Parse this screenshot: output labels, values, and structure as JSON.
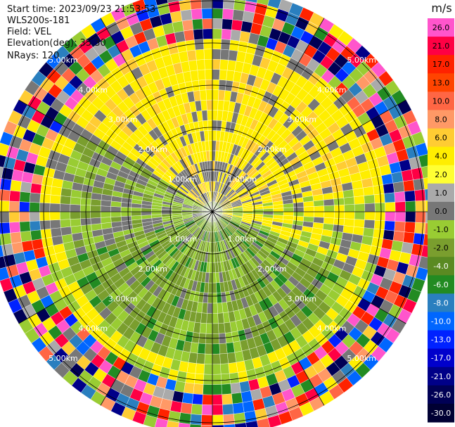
{
  "header": {
    "start_time": "Start time: 2023/09/23 21:53:53",
    "instrument": "WLS200s-181",
    "field": "Field: VEL",
    "elevation": "Elevation(deg): 35.30",
    "nrays": "NRays: 120"
  },
  "chart_data": {
    "type": "heatmap",
    "projection": "polar PPI",
    "field": "VEL",
    "units": "m/s",
    "n_rays": 120,
    "range_rings_km": [
      1.0,
      2.0,
      3.0,
      4.0,
      5.0
    ],
    "range_ring_labels": [
      "1.00km",
      "2.00km",
      "3.00km",
      "4.00km",
      "5.00km"
    ],
    "azimuth_spokes_deg": [
      0,
      30,
      60,
      90,
      120,
      150,
      180,
      210,
      240,
      270,
      300,
      330
    ],
    "max_range_km": 5.3,
    "colorbar": {
      "label": "m/s",
      "ticks": [
        "26.0",
        "21.0",
        "17.0",
        "13.0",
        "10.0",
        "8.0",
        "6.0",
        "4.0",
        "2.0",
        "1.0",
        "0.0",
        "-1.0",
        "-2.0",
        "-4.0",
        "-6.0",
        "-8.0",
        "-10.0",
        "-13.0",
        "-17.0",
        "-21.0",
        "-26.0",
        "-30.0"
      ],
      "colors": [
        "#ff55cc",
        "#ff0044",
        "#ff2200",
        "#ff4400",
        "#ff6644",
        "#ff9966",
        "#ffcc33",
        "#ffee00",
        "#ffff33",
        "#aaaaaa",
        "#777777",
        "#99cc33",
        "#7a9e2e",
        "#5a8a22",
        "#228b22",
        "#2a7fbf",
        "#0066ff",
        "#0022ff",
        "#0000cc",
        "#000088",
        "#000055",
        "#000033"
      ]
    },
    "velocity_zones": [
      {
        "region": "north sector, 1.0–4.3 km",
        "value": 4.0,
        "color": "#ffee00"
      },
      {
        "region": "south-west sector, 0.5–4.0 km",
        "value": -2.0,
        "color": "#7a9e2e"
      },
      {
        "region": "south sector near 1.5 km",
        "value": -6.0,
        "color": "#228b22"
      },
      {
        "region": "outer ring beyond 4.3 km",
        "value": "noise",
        "color": "mixed"
      }
    ]
  }
}
